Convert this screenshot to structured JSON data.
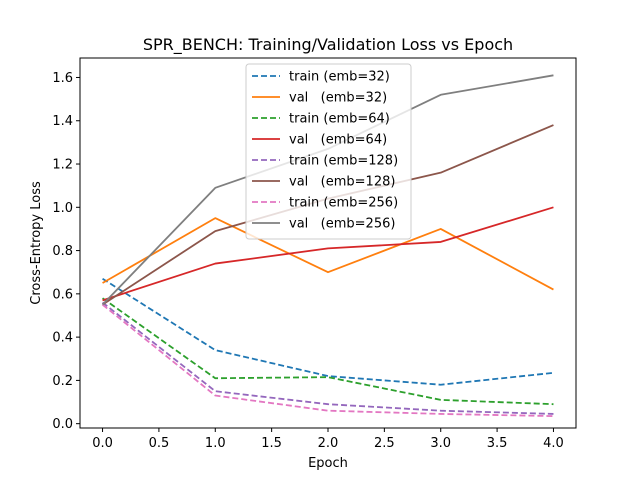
{
  "chart_data": {
    "type": "line",
    "title": "SPR_BENCH: Training/Validation Loss vs Epoch",
    "xlabel": "Epoch",
    "ylabel": "Cross-Entropy Loss",
    "x": [
      0,
      1,
      2,
      3,
      4
    ],
    "xlim": [
      -0.2,
      4.2
    ],
    "ylim": [
      -0.02,
      1.69
    ],
    "xticks": [
      "0.0",
      "0.5",
      "1.0",
      "1.5",
      "2.0",
      "2.5",
      "3.0",
      "3.5",
      "4.0"
    ],
    "xtick_values": [
      0,
      0.5,
      1,
      1.5,
      2,
      2.5,
      3,
      3.5,
      4
    ],
    "yticks": [
      "0.0",
      "0.2",
      "0.4",
      "0.6",
      "0.8",
      "1.0",
      "1.2",
      "1.4",
      "1.6"
    ],
    "ytick_values": [
      0,
      0.2,
      0.4,
      0.6,
      0.8,
      1.0,
      1.2,
      1.4,
      1.6
    ],
    "grid": false,
    "legend_position": "top-center",
    "series": [
      {
        "name": "train (emb=32)",
        "style": "dashed",
        "color": "#1f77b4",
        "values": [
          0.67,
          0.34,
          0.22,
          0.18,
          0.235
        ]
      },
      {
        "name": "val   (emb=32)",
        "style": "solid",
        "color": "#ff7f0e",
        "values": [
          0.65,
          0.95,
          0.7,
          0.9,
          0.62
        ]
      },
      {
        "name": "train (emb=64)",
        "style": "dashed",
        "color": "#2ca02c",
        "values": [
          0.58,
          0.21,
          0.215,
          0.11,
          0.09
        ]
      },
      {
        "name": "val   (emb=64)",
        "style": "solid",
        "color": "#d62728",
        "values": [
          0.57,
          0.74,
          0.81,
          0.84,
          1.0
        ]
      },
      {
        "name": "train (emb=128)",
        "style": "dashed",
        "color": "#9467bd",
        "values": [
          0.56,
          0.15,
          0.09,
          0.06,
          0.045
        ]
      },
      {
        "name": "val   (emb=128)",
        "style": "solid",
        "color": "#8c564b",
        "values": [
          0.55,
          0.89,
          1.04,
          1.16,
          1.38
        ]
      },
      {
        "name": "train (emb=256)",
        "style": "dashed",
        "color": "#e377c2",
        "values": [
          0.55,
          0.13,
          0.06,
          0.045,
          0.035
        ]
      },
      {
        "name": "val   (emb=256)",
        "style": "solid",
        "color": "#7f7f7f",
        "values": [
          0.55,
          1.09,
          1.27,
          1.52,
          1.61
        ]
      }
    ]
  }
}
